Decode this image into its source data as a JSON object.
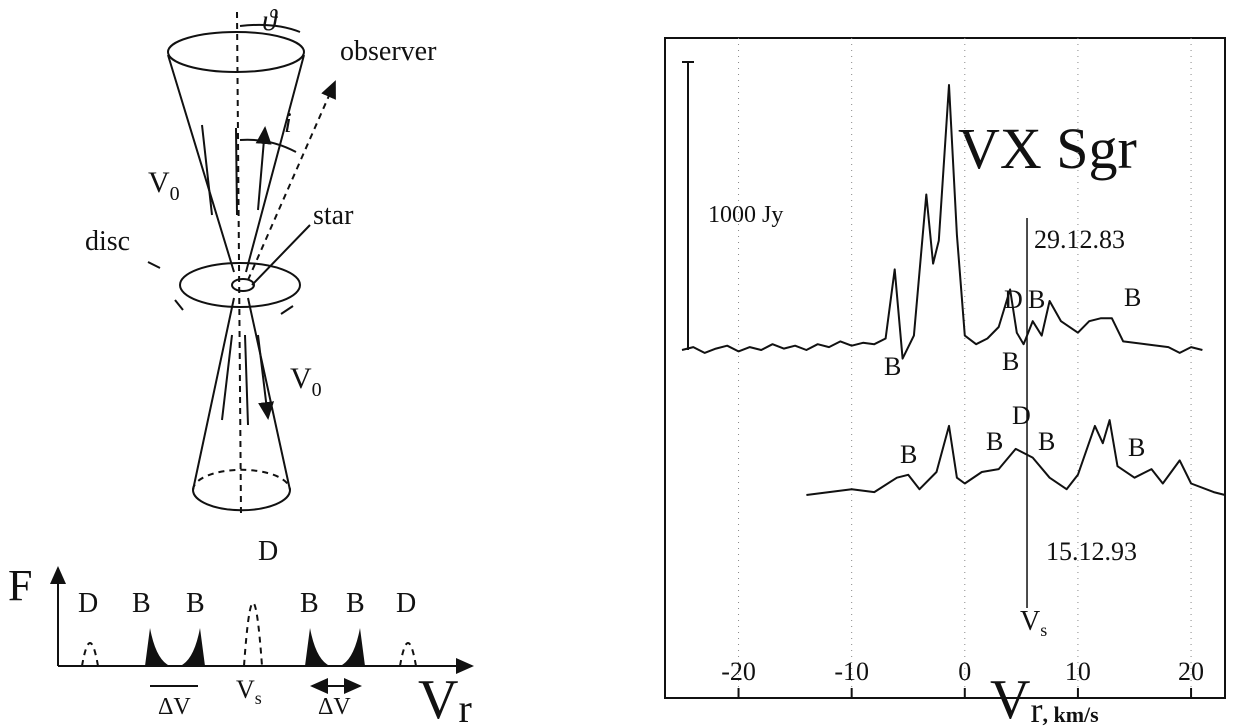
{
  "diagram": {
    "theta": "ϑ",
    "observer": "observer",
    "v0_top": {
      "main": "V",
      "sub": "0"
    },
    "inclination": "i",
    "disc": "disc",
    "star": "star",
    "v0_bottom": {
      "main": "V",
      "sub": "0"
    }
  },
  "profile": {
    "axis_y": "F",
    "axis_x": {
      "main": "V",
      "sub": "r"
    },
    "peaks": [
      "D",
      "B",
      "B",
      "D",
      "B",
      "B",
      "D"
    ],
    "delta_v": [
      "ΔV",
      "ΔV"
    ],
    "vs": {
      "main": "V",
      "sub": "s"
    }
  },
  "chart_data": {
    "type": "line",
    "title": "VX  Sgr",
    "x_label": {
      "main": "V",
      "sub": "r",
      "unit": ", km/s"
    },
    "xlim": [
      -26.5,
      23
    ],
    "xticks": [
      -20,
      -10,
      0,
      10,
      20
    ],
    "grid": true,
    "scale_bar": {
      "value": 1000,
      "label": "1000 Jy"
    },
    "vs_line": {
      "value": 5.5,
      "label": {
        "main": "V",
        "sub": "s"
      }
    },
    "annotations": [
      "B",
      "D",
      "B",
      "B",
      "B",
      "B",
      "B",
      "D",
      "B",
      "B"
    ],
    "series": [
      {
        "name": "29.12.83",
        "color": "#111111",
        "x": [
          -25,
          -24,
          -23,
          -22,
          -21,
          -20,
          -19,
          -18,
          -17,
          -16,
          -15,
          -14,
          -13,
          -12,
          -11,
          -10,
          -9,
          -8,
          -7,
          -6.2,
          -5.5,
          -4.5,
          -3.4,
          -2.8,
          -2.3,
          -1.4,
          -0.7,
          0,
          1,
          2,
          3,
          4,
          4.6,
          5.2,
          6,
          6.8,
          7.5,
          8.5,
          10,
          11,
          12,
          13,
          14,
          16,
          18,
          19,
          20,
          21
        ],
        "values": [
          0,
          10,
          -10,
          5,
          15,
          -5,
          10,
          0,
          20,
          5,
          15,
          0,
          20,
          10,
          30,
          15,
          25,
          20,
          40,
          280,
          -30,
          50,
          540,
          300,
          380,
          920,
          400,
          50,
          20,
          40,
          80,
          210,
          60,
          20,
          100,
          50,
          170,
          100,
          60,
          100,
          110,
          110,
          30,
          20,
          10,
          -10,
          10,
          0
        ]
      },
      {
        "name": "15.12.93",
        "color": "#111111",
        "x": [
          -14,
          -12,
          -10,
          -8,
          -6,
          -5,
          -4,
          -2.5,
          -1.4,
          -0.7,
          0,
          1.5,
          3,
          4.5,
          6,
          7.5,
          9,
          10,
          11.5,
          12.2,
          12.8,
          13.5,
          15,
          16.5,
          17.5,
          19,
          20,
          22,
          23
        ],
        "values": [
          0,
          10,
          20,
          10,
          60,
          70,
          20,
          80,
          240,
          60,
          40,
          80,
          90,
          160,
          130,
          60,
          20,
          70,
          240,
          180,
          260,
          100,
          60,
          90,
          40,
          120,
          40,
          10,
          0
        ]
      }
    ]
  }
}
